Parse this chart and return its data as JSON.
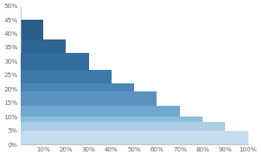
{
  "x_labels": [
    "10%",
    "20%",
    "30%",
    "40%",
    "50%",
    "60%",
    "70%",
    "80%",
    "90%",
    "100%"
  ],
  "heights": [
    45,
    38,
    33,
    27,
    22,
    19,
    14,
    10,
    8,
    5
  ],
  "colors": [
    "#2B5E8A",
    "#2E6593",
    "#336E9E",
    "#3C78A8",
    "#4A85B5",
    "#5A93C0",
    "#72A8D0",
    "#8BBDDB",
    "#A9CEE5",
    "#C5DDED"
  ],
  "ylim": [
    0,
    50
  ],
  "yticks": [
    0,
    5,
    10,
    15,
    20,
    25,
    30,
    35,
    40,
    45,
    50
  ],
  "ytick_labels": [
    "0%",
    "5%",
    "10%",
    "15%",
    "20%",
    "25%",
    "30%",
    "35%",
    "40%",
    "45%",
    "50%"
  ],
  "background_color": "#FFFFFF",
  "plot_bg_color": "#FFFFFF",
  "tick_color": "#666666",
  "spine_color": "#AAAAAA"
}
